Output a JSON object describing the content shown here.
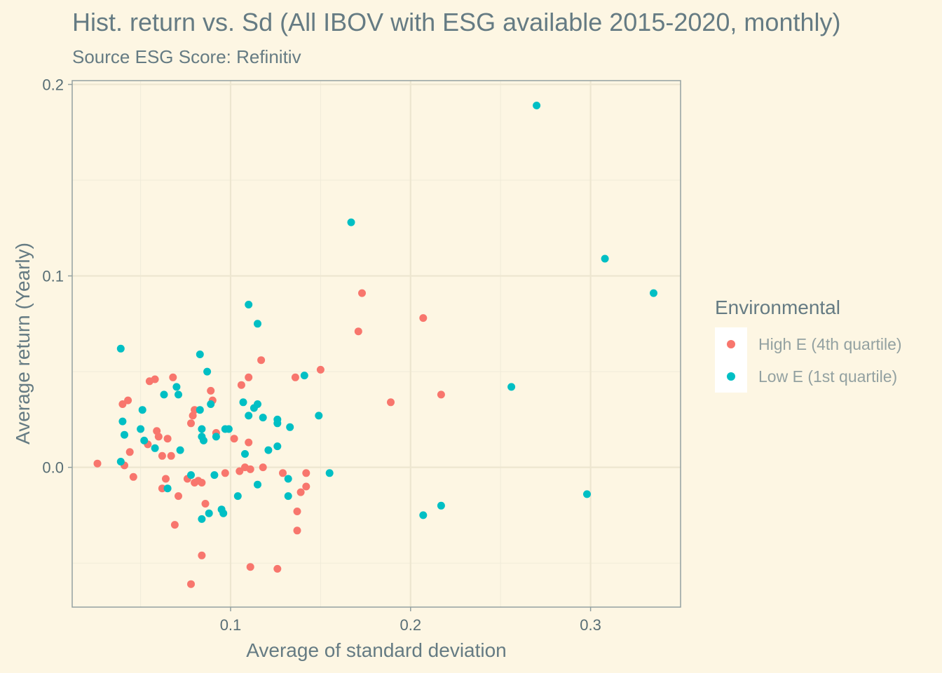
{
  "chart_data": {
    "type": "scatter",
    "title": "Hist. return vs. Sd (All IBOV with ESG available 2015-2020, monthly)",
    "subtitle": "Source ESG Score: Refinitiv",
    "xlabel": "Average of standard deviation",
    "ylabel": "Average return (Yearly)",
    "xlim": [
      0.012,
      0.35
    ],
    "ylim": [
      -0.073,
      0.202
    ],
    "x_ticks": [
      {
        "value": 0.1,
        "label": "0.1"
      },
      {
        "value": 0.2,
        "label": "0.2"
      },
      {
        "value": 0.3,
        "label": "0.3"
      }
    ],
    "y_ticks": [
      {
        "value": 0.0,
        "label": "0.0"
      },
      {
        "value": 0.1,
        "label": "0.1"
      },
      {
        "value": 0.2,
        "label": "0.2"
      }
    ],
    "x_minor": [
      0.05,
      0.15,
      0.25
    ],
    "y_minor": [
      -0.05,
      0.05,
      0.15
    ],
    "grid": true,
    "legend": {
      "title": "Environmental",
      "position": "right"
    },
    "series": [
      {
        "name": "High E (4th quartile)",
        "color": "#f8766d",
        "points": [
          [
            0.026,
            0.002
          ],
          [
            0.04,
            0.033
          ],
          [
            0.041,
            0.001
          ],
          [
            0.043,
            0.035
          ],
          [
            0.044,
            0.008
          ],
          [
            0.046,
            -0.005
          ],
          [
            0.054,
            0.012
          ],
          [
            0.055,
            0.045
          ],
          [
            0.058,
            0.046
          ],
          [
            0.059,
            0.019
          ],
          [
            0.06,
            0.016
          ],
          [
            0.062,
            0.006
          ],
          [
            0.062,
            -0.011
          ],
          [
            0.064,
            -0.006
          ],
          [
            0.065,
            0.015
          ],
          [
            0.067,
            0.006
          ],
          [
            0.068,
            0.047
          ],
          [
            0.069,
            -0.03
          ],
          [
            0.071,
            -0.015
          ],
          [
            0.076,
            -0.006
          ],
          [
            0.078,
            0.023
          ],
          [
            0.078,
            -0.061
          ],
          [
            0.079,
            0.027
          ],
          [
            0.08,
            0.03
          ],
          [
            0.08,
            -0.008
          ],
          [
            0.082,
            -0.007
          ],
          [
            0.084,
            -0.008
          ],
          [
            0.084,
            -0.046
          ],
          [
            0.086,
            -0.019
          ],
          [
            0.089,
            0.04
          ],
          [
            0.09,
            0.035
          ],
          [
            0.092,
            0.018
          ],
          [
            0.097,
            -0.003
          ],
          [
            0.102,
            0.015
          ],
          [
            0.105,
            -0.002
          ],
          [
            0.106,
            0.043
          ],
          [
            0.108,
            0.0
          ],
          [
            0.11,
            0.047
          ],
          [
            0.11,
            0.013
          ],
          [
            0.111,
            -0.001
          ],
          [
            0.111,
            -0.052
          ],
          [
            0.117,
            0.056
          ],
          [
            0.118,
            0.0
          ],
          [
            0.126,
            -0.053
          ],
          [
            0.129,
            -0.003
          ],
          [
            0.136,
            0.047
          ],
          [
            0.137,
            -0.023
          ],
          [
            0.137,
            -0.033
          ],
          [
            0.139,
            -0.013
          ],
          [
            0.142,
            -0.003
          ],
          [
            0.142,
            -0.01
          ],
          [
            0.15,
            0.051
          ],
          [
            0.171,
            0.071
          ],
          [
            0.173,
            0.091
          ],
          [
            0.189,
            0.034
          ],
          [
            0.207,
            0.078
          ],
          [
            0.217,
            0.038
          ]
        ]
      },
      {
        "name": "Low E (1st quartile)",
        "color": "#00bfc4",
        "points": [
          [
            0.039,
            0.062
          ],
          [
            0.039,
            0.003
          ],
          [
            0.04,
            0.024
          ],
          [
            0.041,
            0.017
          ],
          [
            0.05,
            0.02
          ],
          [
            0.051,
            0.03
          ],
          [
            0.052,
            0.014
          ],
          [
            0.058,
            0.01
          ],
          [
            0.063,
            0.038
          ],
          [
            0.065,
            -0.011
          ],
          [
            0.07,
            0.042
          ],
          [
            0.071,
            0.038
          ],
          [
            0.072,
            0.009
          ],
          [
            0.078,
            -0.004
          ],
          [
            0.083,
            0.059
          ],
          [
            0.083,
            0.03
          ],
          [
            0.084,
            0.016
          ],
          [
            0.084,
            0.02
          ],
          [
            0.085,
            0.014
          ],
          [
            0.084,
            -0.027
          ],
          [
            0.087,
            0.05
          ],
          [
            0.088,
            -0.024
          ],
          [
            0.089,
            0.033
          ],
          [
            0.091,
            -0.004
          ],
          [
            0.092,
            0.016
          ],
          [
            0.095,
            -0.022
          ],
          [
            0.096,
            -0.024
          ],
          [
            0.097,
            0.02
          ],
          [
            0.099,
            0.02
          ],
          [
            0.104,
            -0.015
          ],
          [
            0.107,
            0.034
          ],
          [
            0.108,
            0.007
          ],
          [
            0.11,
            0.085
          ],
          [
            0.11,
            0.027
          ],
          [
            0.113,
            0.031
          ],
          [
            0.115,
            0.075
          ],
          [
            0.115,
            0.033
          ],
          [
            0.115,
            -0.009
          ],
          [
            0.118,
            0.026
          ],
          [
            0.121,
            0.009
          ],
          [
            0.126,
            0.011
          ],
          [
            0.126,
            0.025
          ],
          [
            0.126,
            0.023
          ],
          [
            0.132,
            -0.006
          ],
          [
            0.133,
            0.021
          ],
          [
            0.132,
            -0.015
          ],
          [
            0.141,
            0.048
          ],
          [
            0.149,
            0.027
          ],
          [
            0.155,
            -0.003
          ],
          [
            0.167,
            0.128
          ],
          [
            0.207,
            -0.025
          ],
          [
            0.217,
            -0.02
          ],
          [
            0.256,
            0.042
          ],
          [
            0.27,
            0.189
          ],
          [
            0.298,
            -0.014
          ],
          [
            0.308,
            0.109
          ],
          [
            0.335,
            0.091
          ]
        ]
      }
    ]
  }
}
